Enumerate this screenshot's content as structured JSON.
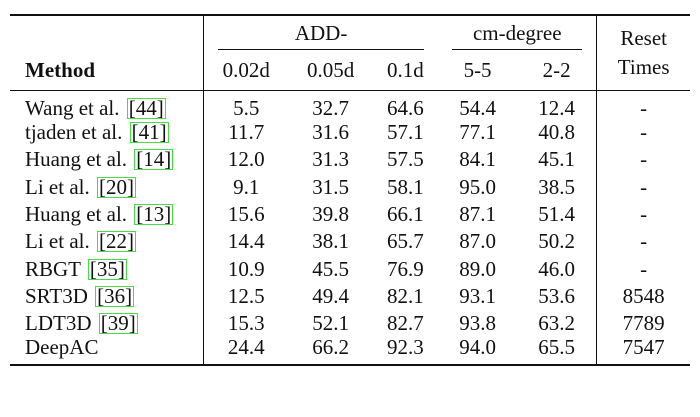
{
  "table": {
    "header": {
      "method": "Method",
      "add_group": "ADD-",
      "cm_group": "cm-degree",
      "reset_line1": "Reset",
      "reset_line2": "Times",
      "sub": [
        "0.02d",
        "0.05d",
        "0.1d",
        "5-5",
        "2-2"
      ]
    },
    "rows": [
      {
        "name": "Wang et al. ",
        "cite": "[44]",
        "values": [
          "5.5",
          "32.7",
          "64.6",
          "54.4",
          "12.4"
        ],
        "reset": "-"
      },
      {
        "name": "tjaden et al. ",
        "cite": "[41]",
        "values": [
          "11.7",
          "31.6",
          "57.1",
          "77.1",
          "40.8"
        ],
        "reset": "-"
      },
      {
        "name": "Huang et al. ",
        "cite": "[14]",
        "values": [
          "12.0",
          "31.3",
          "57.5",
          "84.1",
          "45.1"
        ],
        "reset": "-"
      },
      {
        "name": "Li et al. ",
        "cite": "[20]",
        "values": [
          "9.1",
          "31.5",
          "58.1",
          "95.0",
          "38.5"
        ],
        "reset": "-"
      },
      {
        "name": "Huang et al. ",
        "cite": "[13]",
        "values": [
          "15.6",
          "39.8",
          "66.1",
          "87.1",
          "51.4"
        ],
        "reset": "-"
      },
      {
        "name": "Li et al. ",
        "cite": "[22]",
        "values": [
          "14.4",
          "38.1",
          "65.7",
          "87.0",
          "50.2"
        ],
        "reset": "-"
      },
      {
        "name": "RBGT ",
        "cite": "[35]",
        "values": [
          "10.9",
          "45.5",
          "76.9",
          "89.0",
          "46.0"
        ],
        "reset": "-"
      },
      {
        "name": "SRT3D ",
        "cite": "[36]",
        "values": [
          "12.5",
          "49.4",
          "82.1",
          "93.1",
          "53.6"
        ],
        "reset": "8548"
      },
      {
        "name": "LDT3D ",
        "cite": "[39]",
        "values": [
          "15.3",
          "52.1",
          "82.7",
          "93.8",
          "63.2"
        ],
        "reset": "7789"
      },
      {
        "name": "DeepAC",
        "cite": "",
        "values": [
          "24.4",
          "66.2",
          "92.3",
          "94.0",
          "65.5"
        ],
        "reset": "7547",
        "bold": true
      }
    ]
  }
}
